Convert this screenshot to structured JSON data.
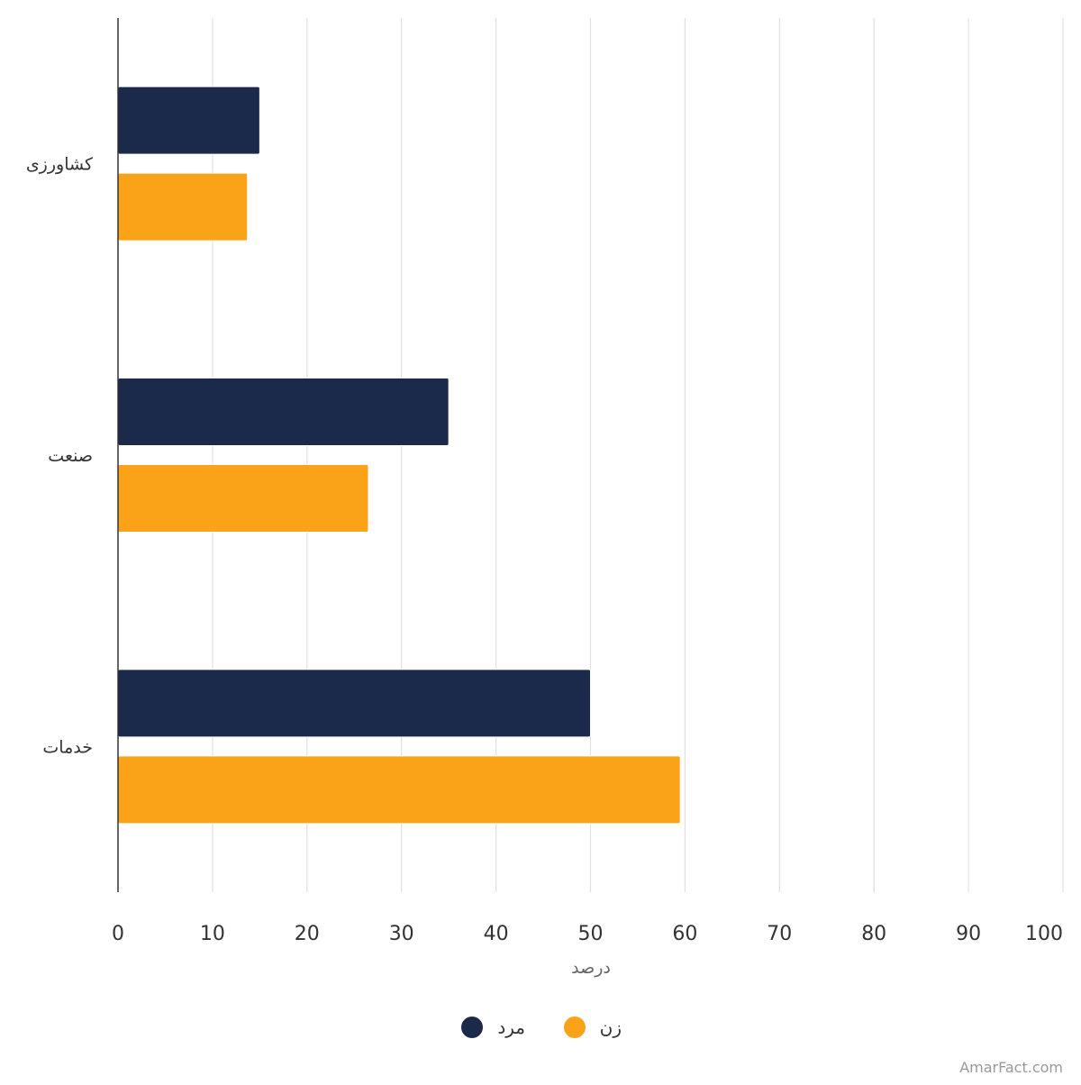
{
  "chart_data": {
    "type": "bar",
    "orientation": "horizontal",
    "categories": [
      "کشاورزی",
      "صنعت",
      "خدمات"
    ],
    "series": [
      {
        "name": "مرد",
        "values": [
          15,
          35,
          50
        ],
        "color": "#1b2a4a"
      },
      {
        "name": "زن",
        "values": [
          13.7,
          26.5,
          59.5
        ],
        "color": "#fba318"
      }
    ],
    "xlabel": "درصد",
    "xlim": [
      0,
      100
    ],
    "x_ticks": [
      0,
      10,
      20,
      30,
      40,
      50,
      60,
      70,
      80,
      90,
      100
    ],
    "grid": true,
    "legend_position": "bottom-center"
  },
  "watermark": "AmarFact.com",
  "colors": {
    "grid": "#e0e0e0",
    "axis": "#333333"
  }
}
